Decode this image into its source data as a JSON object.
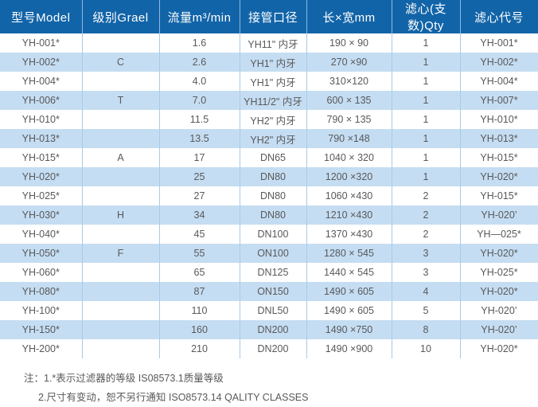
{
  "table": {
    "headers": [
      "型号Model",
      "级别Grael",
      "流量m³/min",
      "接管口径",
      "长×宽mm",
      "滤心(支数)Qty",
      "滤心代号"
    ],
    "rows": [
      {
        "model": "YH-001*",
        "grade": "",
        "flow": "1.6",
        "port": "YH11\" 内牙",
        "size": "190 × 90",
        "qty": "1",
        "code": "YH-001*"
      },
      {
        "model": "YH-002*",
        "grade": "C",
        "flow": "2.6",
        "port": "YH1\" 内牙",
        "size": "270 ×90",
        "qty": "1",
        "code": "YH-002*"
      },
      {
        "model": "YH-004*",
        "grade": "",
        "flow": "4.0",
        "port": "YH1\" 内牙",
        "size": "310×120",
        "qty": "1",
        "code": "YH-004*"
      },
      {
        "model": "YH-006*",
        "grade": "T",
        "flow": "7.0",
        "port": "YH11/2\" 内牙",
        "size": "600 × 135",
        "qty": "1",
        "code": "YH-007*"
      },
      {
        "model": "YH-010*",
        "grade": "",
        "flow": "11.5",
        "port": "YH2\" 内牙",
        "size": "790 × 135",
        "qty": "1",
        "code": "YH-010*"
      },
      {
        "model": "YH-013*",
        "grade": "",
        "flow": "13.5",
        "port": "YH2\" 内牙",
        "size": "790 ×148",
        "qty": "1",
        "code": "YH-013*"
      },
      {
        "model": "YH-015*",
        "grade": "A",
        "flow": "17",
        "port": "DN65",
        "size": "1040 × 320",
        "qty": "1",
        "code": "YH-015*"
      },
      {
        "model": "YH-020*",
        "grade": "",
        "flow": "25",
        "port": "DN80",
        "size": "1200 ×320",
        "qty": "1",
        "code": "YH-020*"
      },
      {
        "model": "YH-025*",
        "grade": "",
        "flow": "27",
        "port": "DN80",
        "size": "1060 ×430",
        "qty": "2",
        "code": "YH-015*"
      },
      {
        "model": "YH-030*",
        "grade": "H",
        "flow": "34",
        "port": "DN80",
        "size": "1210 ×430",
        "qty": "2",
        "code": "YH-020’"
      },
      {
        "model": "YH-040*",
        "grade": "",
        "flow": "45",
        "port": "DN100",
        "size": "1370 ×430",
        "qty": "2",
        "code": "YH—025*"
      },
      {
        "model": "YH-050*",
        "grade": "F",
        "flow": "55",
        "port": "ON100",
        "size": "1280 × 545",
        "qty": "3",
        "code": "YH-020*"
      },
      {
        "model": "YH-060*",
        "grade": "",
        "flow": "65",
        "port": "DN125",
        "size": "1440 × 545",
        "qty": "3",
        "code": "YH-025*"
      },
      {
        "model": "YH-080*",
        "grade": "",
        "flow": "87",
        "port": "ON150",
        "size": "1490 × 605",
        "qty": "4",
        "code": "YH-020*"
      },
      {
        "model": "YH-100*",
        "grade": "",
        "flow": "110",
        "port": "DNL50",
        "size": "1490 × 605",
        "qty": "5",
        "code": "YH-020’"
      },
      {
        "model": "YH-150*",
        "grade": "",
        "flow": "160",
        "port": "DN200",
        "size": "1490 ×750",
        "qty": "8",
        "code": "YH-020’"
      },
      {
        "model": "YH-200*",
        "grade": "",
        "flow": "210",
        "port": "DN200",
        "size": "1490 ×900",
        "qty": "10",
        "code": "YH-020*"
      }
    ]
  },
  "notes": {
    "line1": "注：1.*表示过滤器的等级  IS08573.1质量等级",
    "line2": "2.尺寸有变动，恕不另行通知  ISO8573.14 QALITY CLASSES"
  },
  "colors": {
    "header_background": "#1264a8",
    "header_text": "#ffffff",
    "row_alternate": "#c5ddf2",
    "row_default": "#ffffff",
    "grid_line": "#a7cbe8",
    "body_text": "#58595b"
  }
}
